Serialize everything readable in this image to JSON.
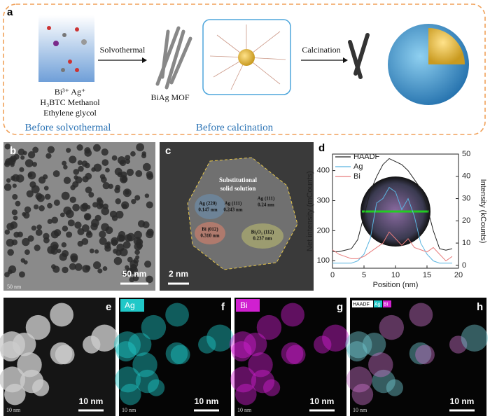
{
  "panel_a": {
    "label": "a",
    "precursors": [
      "Bi³⁺ Ag⁺",
      "H₃BTC Methanol",
      "Ethylene glycol"
    ],
    "stage_1": "Before solvothermal",
    "step_1": "Solvothermal",
    "product_1": "BiAg MOF",
    "stage_2": "Before calcination",
    "step_2": "Calcination"
  },
  "panel_b": {
    "label": "b",
    "scale_bar": "50 nm",
    "corner_scale": "50 nm"
  },
  "panel_c": {
    "label": "c",
    "region": [
      "Substitutional",
      "solid solution"
    ],
    "annotations": [
      [
        "Ag (220)",
        "0.147 nm"
      ],
      [
        "Ag (111)",
        "0.243 nm"
      ],
      [
        "Ag (111)",
        "0.24 nm"
      ],
      [
        "Bi (012)",
        "0.310 nm"
      ],
      [
        "Bi₂O₃ (112)",
        "0.237 nm"
      ]
    ],
    "scale_bar": "2 nm"
  },
  "panel_d": {
    "label": "d",
    "type": "line",
    "xlabel": "Position (nm)",
    "ylabel": "Net intensity (mCounts)",
    "y2label": "Intensity (kCounts)",
    "x": [
      0,
      1,
      2,
      3,
      4,
      5,
      6,
      7,
      8,
      9,
      10,
      11,
      12,
      13,
      14,
      15,
      16,
      17,
      18,
      19
    ],
    "series": [
      {
        "name": "HAADF",
        "color": "#222222",
        "values": [
          130,
          130,
          135,
          140,
          170,
          250,
          330,
          380,
          420,
          440,
          430,
          420,
          400,
          370,
          340,
          280,
          200,
          140,
          135,
          140
        ]
      },
      {
        "name": "Ag",
        "color": "#5bb5e0",
        "axis": "y2",
        "values": [
          1,
          1,
          1,
          1,
          2,
          5,
          12,
          28,
          30,
          35,
          33,
          25,
          30,
          22,
          10,
          5,
          2,
          1,
          1,
          1
        ]
      },
      {
        "name": "Bi",
        "color": "#e87c7c",
        "axis": "y2",
        "values": [
          7,
          5,
          4,
          3,
          3,
          4,
          6,
          8,
          10,
          15,
          12,
          9,
          12,
          8,
          7,
          6,
          8,
          5,
          2,
          4
        ]
      }
    ],
    "xlim": [
      0,
      20
    ],
    "xticks": [
      0,
      5,
      10,
      15,
      20
    ],
    "ylim": [
      75,
      455
    ],
    "yticks": [
      100,
      200,
      300,
      400
    ],
    "y2lim": [
      -1.3,
      50
    ],
    "y2ticks": [
      0,
      10,
      20,
      30,
      40,
      50
    ]
  },
  "panels_e_h": [
    {
      "label": "e",
      "scale_bar": "10 nm",
      "corner_scale": "10 nm"
    },
    {
      "label": "f",
      "channel": "Ag",
      "scale_bar": "10 nm",
      "corner_scale": "10 nm"
    },
    {
      "label": "g",
      "channel": "Bi",
      "scale_bar": "10 nm",
      "corner_scale": "10 nm"
    },
    {
      "label": "h",
      "channels": [
        "HAADF",
        "Ag",
        "Bi"
      ],
      "scale_bar": "10 nm",
      "corner_scale": "10 nm"
    }
  ]
}
